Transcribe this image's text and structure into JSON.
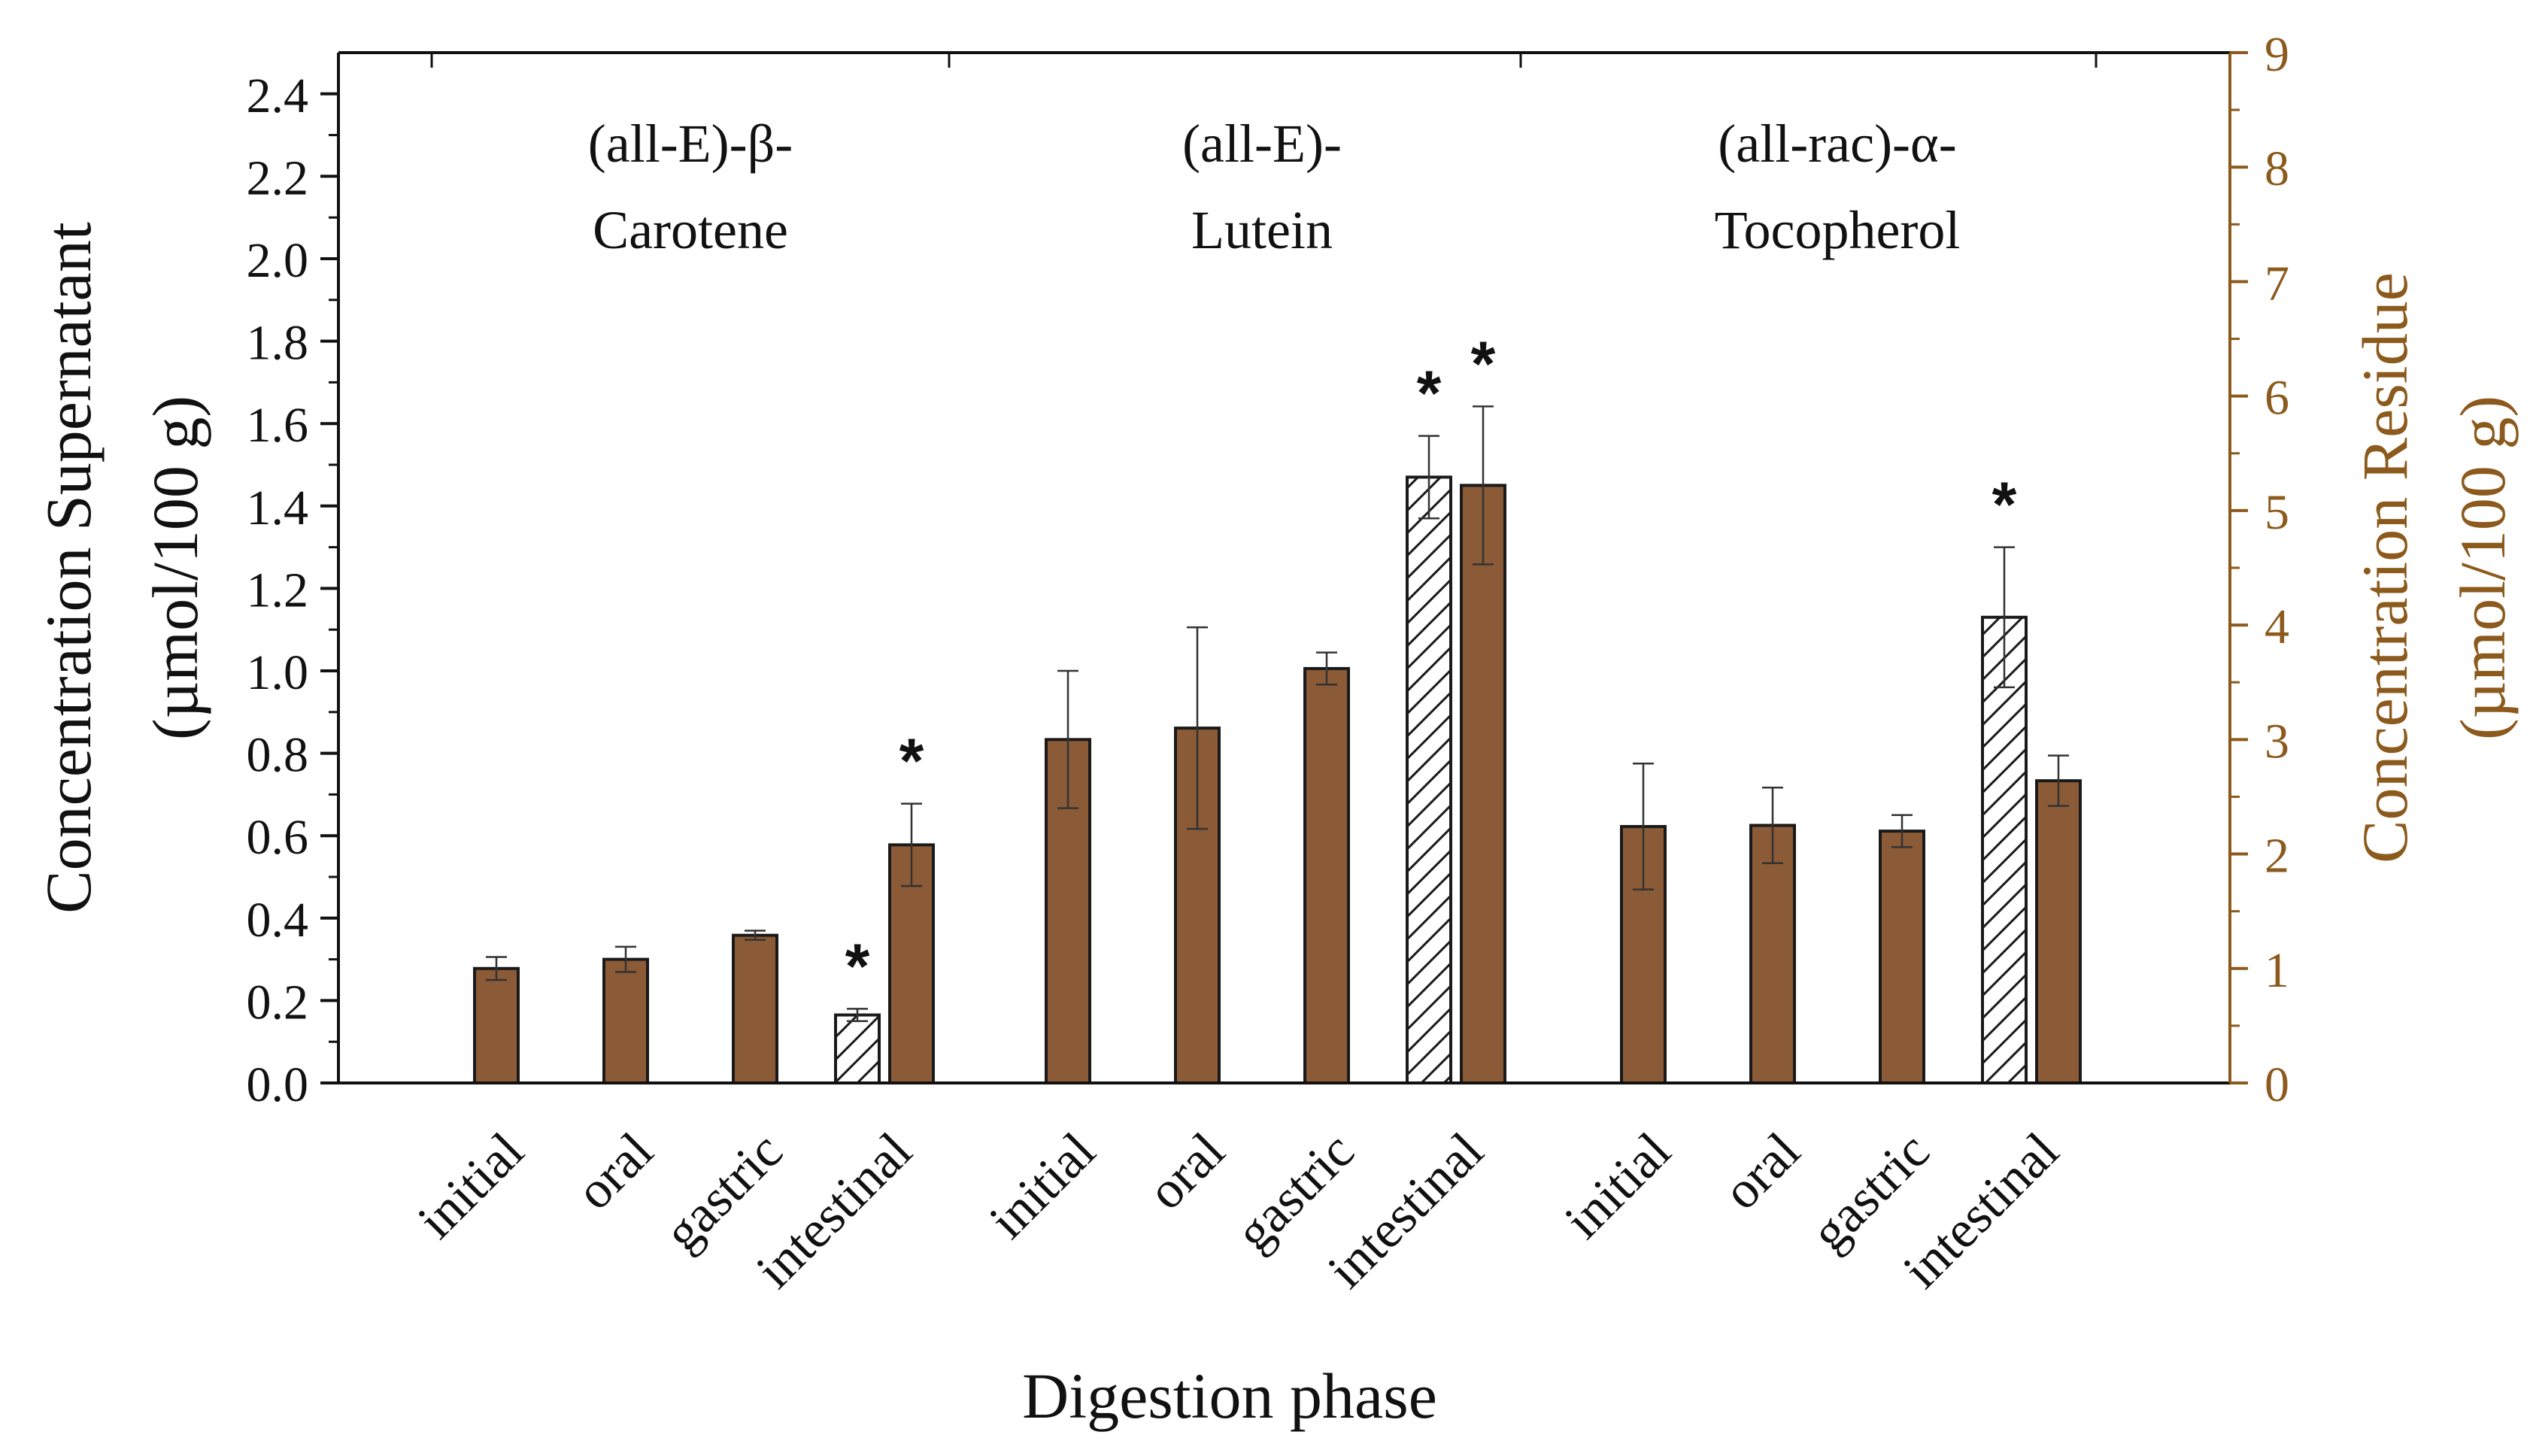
{
  "chart_data": {
    "type": "bar",
    "x_label": "Digestion phase",
    "y_label_left_line1": "Concentration Supernatant",
    "y_label_left_line2": "(µmol/100 g)",
    "y_label_right_line1": "Concentration Residue",
    "y_label_right_line2": "(µmol/100 g)",
    "left_axis": {
      "min": 0,
      "max": 2.5,
      "ticks": [
        "0.0",
        "0.2",
        "0.4",
        "0.6",
        "0.8",
        "1.0",
        "1.2",
        "1.4",
        "1.6",
        "1.8",
        "2.0",
        "2.2",
        "2.4"
      ]
    },
    "right_axis": {
      "min": 0,
      "max": 9,
      "ticks": [
        "0",
        "1",
        "2",
        "3",
        "4",
        "5",
        "6",
        "7",
        "8",
        "9"
      ]
    },
    "colors": {
      "residue": "#8B5A36",
      "supernatant": "#ffffff",
      "axis_right": "#8B5A1C",
      "stroke": "#1a1a1a"
    },
    "significance_mark": "*",
    "groups": [
      {
        "title_line1": "(all-E)-β-",
        "title_line2": "Carotene",
        "phases": [
          {
            "label": "initial",
            "residue": 1.0,
            "residue_err": 0.1,
            "supernatant": null,
            "supernatant_err": null,
            "sig_supernatant": false,
            "sig_residue": false
          },
          {
            "label": "oral",
            "residue": 1.08,
            "residue_err": 0.11,
            "supernatant": null,
            "supernatant_err": null,
            "sig_supernatant": false,
            "sig_residue": false
          },
          {
            "label": "gastric",
            "residue": 1.29,
            "residue_err": 0.04,
            "supernatant": null,
            "supernatant_err": null,
            "sig_supernatant": false,
            "sig_residue": false
          },
          {
            "label": "intestinal",
            "residue": 2.08,
            "residue_err": 0.36,
            "supernatant": 0.165,
            "supernatant_err": 0.015,
            "sig_supernatant": true,
            "sig_residue": true
          }
        ]
      },
      {
        "title_line1": "(all-E)-",
        "title_line2": "Lutein",
        "phases": [
          {
            "label": "initial",
            "residue": 3.0,
            "residue_err": 0.6,
            "supernatant": null,
            "supernatant_err": null,
            "sig_supernatant": false,
            "sig_residue": false
          },
          {
            "label": "oral",
            "residue": 3.1,
            "residue_err": 0.88,
            "supernatant": null,
            "supernatant_err": null,
            "sig_supernatant": false,
            "sig_residue": false
          },
          {
            "label": "gastric",
            "residue": 3.62,
            "residue_err": 0.14,
            "supernatant": null,
            "supernatant_err": null,
            "sig_supernatant": false,
            "sig_residue": false
          },
          {
            "label": "intestinal",
            "residue": 5.22,
            "residue_err": 0.69,
            "supernatant": 1.47,
            "supernatant_err": 0.1,
            "sig_supernatant": true,
            "sig_residue": true
          }
        ]
      },
      {
        "title_line1": "(all-rac)-α-",
        "title_line2": "Tocopherol",
        "phases": [
          {
            "label": "initial",
            "residue": 2.24,
            "residue_err": 0.55,
            "supernatant": null,
            "supernatant_err": null,
            "sig_supernatant": false,
            "sig_residue": false
          },
          {
            "label": "oral",
            "residue": 2.25,
            "residue_err": 0.33,
            "supernatant": null,
            "supernatant_err": null,
            "sig_supernatant": false,
            "sig_residue": false
          },
          {
            "label": "gastric",
            "residue": 2.2,
            "residue_err": 0.14,
            "supernatant": null,
            "supernatant_err": null,
            "sig_supernatant": false,
            "sig_residue": false
          },
          {
            "label": "intestinal",
            "residue": 2.64,
            "residue_err": 0.22,
            "supernatant": 1.13,
            "supernatant_err": 0.17,
            "sig_supernatant": true,
            "sig_residue": false
          }
        ]
      }
    ]
  }
}
